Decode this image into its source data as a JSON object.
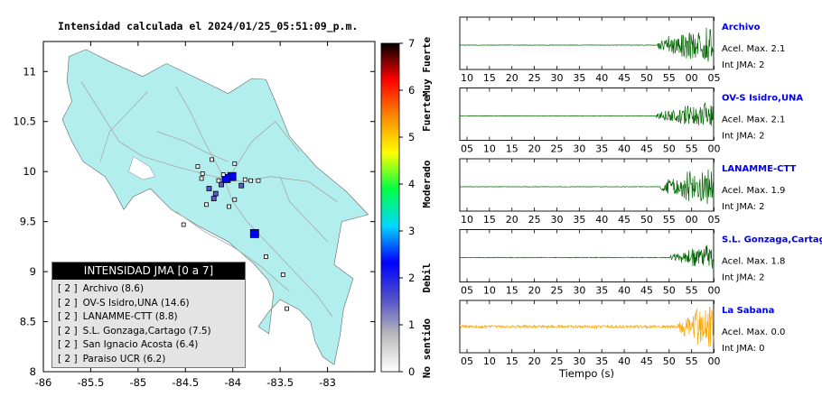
{
  "map": {
    "title": "Intensidad calculada el 2024/01/25_05:51:09_p.m.",
    "lon_range": [
      -86,
      -82.5
    ],
    "lat_range": [
      8,
      11.3
    ],
    "x_ticks": [
      "-86",
      "-85.5",
      "-85",
      "-84.5",
      "-84",
      "-83.5",
      "-83"
    ],
    "y_ticks": [
      "8",
      "8.5",
      "9",
      "9.5",
      "10",
      "10.5",
      "11"
    ],
    "land_color": "#b2eeee",
    "stations": [
      {
        "lon": -84.01,
        "lat": 9.95,
        "intensity": 2
      },
      {
        "lon": -83.77,
        "lat": 9.38,
        "intensity": 2
      },
      {
        "lon": -84.07,
        "lat": 9.93,
        "intensity": 2
      },
      {
        "lon": -84.12,
        "lat": 9.87,
        "intensity": 1
      },
      {
        "lon": -84.25,
        "lat": 9.83,
        "intensity": 1
      },
      {
        "lon": -84.18,
        "lat": 9.78,
        "intensity": 1
      },
      {
        "lon": -83.91,
        "lat": 9.86,
        "intensity": 1
      },
      {
        "lon": -84.2,
        "lat": 9.73,
        "intensity": 1
      },
      {
        "lon": -84.22,
        "lat": 10.12,
        "intensity": 0
      },
      {
        "lon": -84.37,
        "lat": 10.05,
        "intensity": 0
      },
      {
        "lon": -83.98,
        "lat": 10.08,
        "intensity": 0
      },
      {
        "lon": -84.15,
        "lat": 9.91,
        "intensity": 0
      },
      {
        "lon": -83.87,
        "lat": 9.92,
        "intensity": 0
      },
      {
        "lon": -83.81,
        "lat": 9.91,
        "intensity": 0
      },
      {
        "lon": -83.73,
        "lat": 9.91,
        "intensity": 0
      },
      {
        "lon": -84.33,
        "lat": 9.93,
        "intensity": 0
      },
      {
        "lon": -84.28,
        "lat": 9.67,
        "intensity": 0
      },
      {
        "lon": -84.04,
        "lat": 9.65,
        "intensity": 0
      },
      {
        "lon": -83.98,
        "lat": 9.72,
        "intensity": 0
      },
      {
        "lon": -84.52,
        "lat": 9.47,
        "intensity": 0
      },
      {
        "lon": -83.65,
        "lat": 9.15,
        "intensity": 0
      },
      {
        "lon": -83.47,
        "lat": 8.97,
        "intensity": 0
      },
      {
        "lon": -83.43,
        "lat": 8.63,
        "intensity": 0
      },
      {
        "lon": -84.32,
        "lat": 9.98,
        "intensity": 0
      },
      {
        "lon": -84.1,
        "lat": 9.97,
        "intensity": 0
      }
    ]
  },
  "colorbar": {
    "ticks": [
      "0",
      "1",
      "2",
      "3",
      "4",
      "5",
      "6",
      "7"
    ],
    "labels": [
      {
        "text": "No sentido",
        "at": 0.5
      },
      {
        "text": "Debil",
        "at": 2
      },
      {
        "text": "Moderado",
        "at": 4
      },
      {
        "text": "Fuerte",
        "at": 5.5
      },
      {
        "text": "Muy Fuerte",
        "at": 6.5
      }
    ],
    "stops": [
      "#ffffff",
      "#bbbbbb",
      "#5050c8",
      "#0000ff",
      "#00d8ff",
      "#00ff44",
      "#ffff00",
      "#ff8800",
      "#ff0000",
      "#000000"
    ]
  },
  "legend": {
    "header": "INTENSIDAD JMA [0 a 7]",
    "items": [
      {
        "level": "[ 2 ]",
        "name": "Archivo (8.6)"
      },
      {
        "level": "[ 2 ]",
        "name": "OV-S Isidro,UNA (14.6)"
      },
      {
        "level": "[ 2 ]",
        "name": "LANAMME-CTT (8.8)"
      },
      {
        "level": "[ 2 ]",
        "name": "S.L. Gonzaga,Cartago (7.5)"
      },
      {
        "level": "[ 2 ]",
        "name": "San Ignacio Acosta (6.4)"
      },
      {
        "level": "[ 2 ]",
        "name": "Paraiso UCR (6.2)"
      }
    ]
  },
  "waveforms": {
    "xlabel": "Tiempo (s)",
    "acc_prefix": "Acel. Max. ",
    "int_prefix": "Int JMA: ",
    "panels": [
      {
        "name": "Archivo",
        "acc": "2.1",
        "int": "2",
        "color": "#006400",
        "ticks": [
          "10",
          "15",
          "20",
          "25",
          "30",
          "35",
          "40",
          "45",
          "50",
          "55",
          "00",
          "05"
        ],
        "tick_start": 10,
        "onset": 0.78,
        "quake_amp": 0.85,
        "noise_amp": 0.01
      },
      {
        "name": "OV-S Isidro,UNA",
        "acc": "2.1",
        "int": "2",
        "color": "#006400",
        "ticks": [
          "05",
          "10",
          "15",
          "20",
          "25",
          "30",
          "35",
          "40",
          "45",
          "50",
          "55",
          "00"
        ],
        "tick_start": 5,
        "onset": 0.77,
        "quake_amp": 0.55,
        "noise_amp": 0.01
      },
      {
        "name": "LANAMME-CTT",
        "acc": "1.9",
        "int": "2",
        "color": "#006400",
        "ticks": [
          "10",
          "15",
          "20",
          "25",
          "30",
          "35",
          "40",
          "45",
          "50",
          "55",
          "00",
          "05"
        ],
        "tick_start": 10,
        "onset": 0.79,
        "quake_amp": 0.8,
        "noise_amp": 0.01
      },
      {
        "name": "S.L. Gonzaga,Cartago",
        "acc": "1.8",
        "int": "2",
        "color": "#006400",
        "ticks": [
          "05",
          "10",
          "15",
          "20",
          "25",
          "30",
          "35",
          "40",
          "45",
          "50",
          "55",
          "00"
        ],
        "tick_start": 5,
        "onset": 0.83,
        "quake_amp": 0.55,
        "noise_amp": 0.015
      },
      {
        "name": "La Sabana",
        "acc": "0.0",
        "int": "0",
        "color": "#ffa500",
        "ticks": [
          "05",
          "10",
          "15",
          "20",
          "25",
          "30",
          "35",
          "40",
          "45",
          "50",
          "55",
          "00"
        ],
        "tick_start": 5,
        "onset": 0.86,
        "quake_amp": 0.9,
        "noise_amp": 0.06
      }
    ]
  }
}
